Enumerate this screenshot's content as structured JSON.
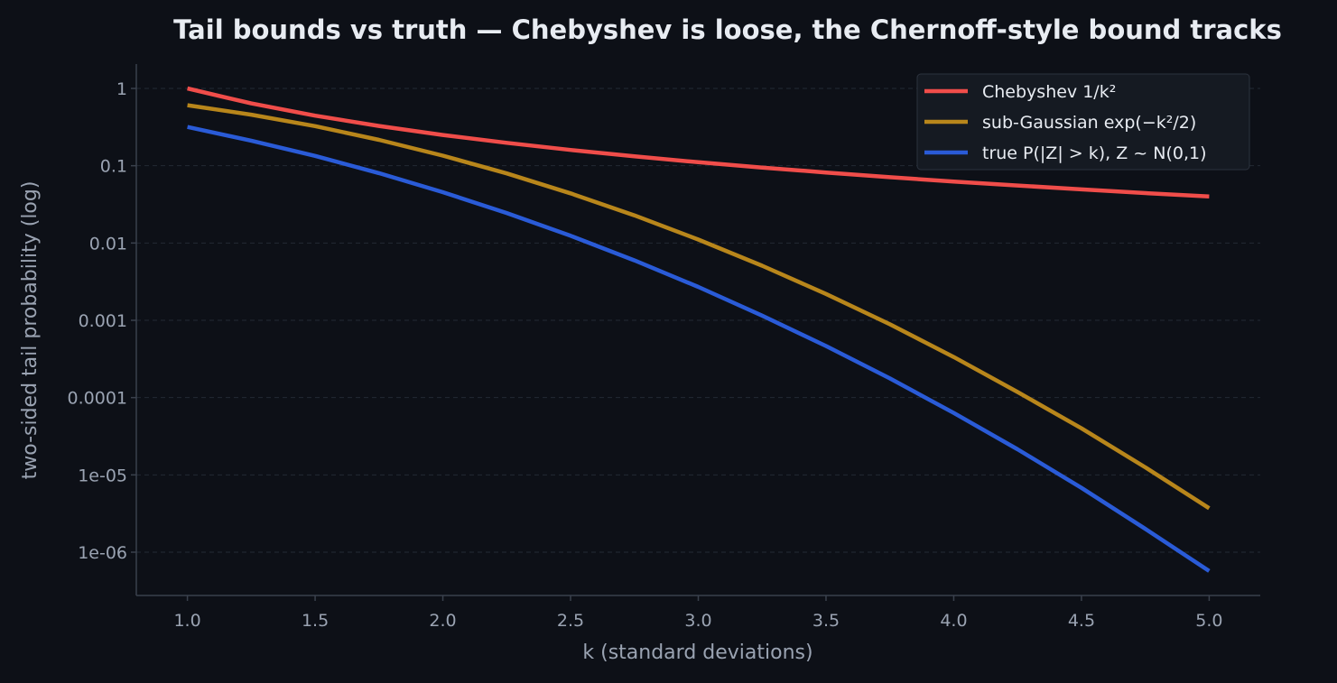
{
  "chart_data": {
    "type": "line",
    "title": "Tail bounds vs truth — Chebyshev is loose, the Chernoff-style bound tracks",
    "xlabel": "k (standard deviations)",
    "ylabel": "two-sided tail probability (log)",
    "xlim": [
      0.8,
      5.2
    ],
    "ylim": [
      3e-07,
      2
    ],
    "yscale": "log",
    "grid": "y-dashed",
    "legend_position": "top-right",
    "x_ticks": [
      1.0,
      1.5,
      2.0,
      2.5,
      3.0,
      3.5,
      4.0,
      4.5,
      5.0
    ],
    "x_tick_labels": [
      "1.0",
      "1.5",
      "2.0",
      "2.5",
      "3.0",
      "3.5",
      "4.0",
      "4.5",
      "5.0"
    ],
    "y_ticks": [
      1,
      0.1,
      0.01,
      0.001,
      0.0001,
      1e-05,
      1e-06
    ],
    "y_tick_labels": [
      "1",
      "0.1",
      "0.01",
      "0.001",
      "0.0001",
      "1e-05",
      "1e-06"
    ],
    "x": [
      1.0,
      1.25,
      1.5,
      1.75,
      2.0,
      2.25,
      2.5,
      2.75,
      3.0,
      3.25,
      3.5,
      3.75,
      4.0,
      4.25,
      4.5,
      4.75,
      5.0
    ],
    "series": [
      {
        "name": "Chebyshev 1/k²",
        "color": "#f04d4a",
        "values": [
          1.0,
          0.64,
          0.444,
          0.327,
          0.25,
          0.198,
          0.16,
          0.132,
          0.111,
          0.0947,
          0.0816,
          0.0711,
          0.0625,
          0.0554,
          0.0494,
          0.0443,
          0.04
        ]
      },
      {
        "name": "sub-Gaussian exp(−k²/2)",
        "color": "#b8861b",
        "values": [
          0.607,
          0.458,
          0.325,
          0.216,
          0.135,
          0.0796,
          0.0439,
          0.0228,
          0.0111,
          0.00508,
          0.00219,
          0.000889,
          0.000335,
          0.000118,
          4.01e-05,
          1.25e-05,
          3.7e-06
        ]
      },
      {
        "name": "true P(|Z| > k), Z ~ N(0,1)",
        "color": "#2a5bd7",
        "values": [
          0.317,
          0.211,
          0.134,
          0.0801,
          0.0455,
          0.0244,
          0.0124,
          0.00596,
          0.0027,
          0.00115,
          0.000465,
          0.000177,
          6.33e-05,
          2.14e-05,
          6.8e-06,
          2e-06,
          5.7e-07
        ]
      }
    ]
  }
}
